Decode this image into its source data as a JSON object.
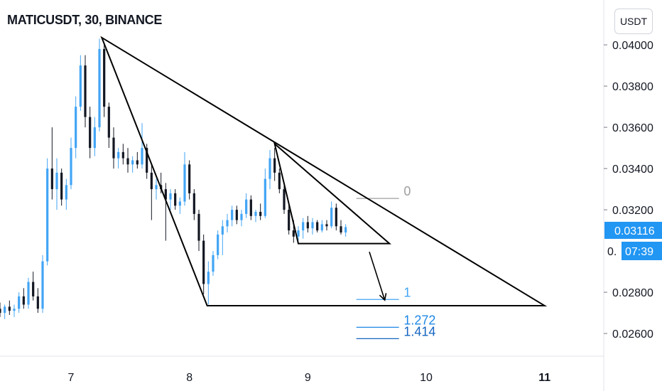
{
  "header": {
    "title": "MATICUSDT, 30, BINANCE",
    "unit": "USDT"
  },
  "chart_data": {
    "type": "candlestick",
    "symbol": "MATICUSDT",
    "interval": "30",
    "exchange": "BINANCE",
    "y_ticks": [
      "0.04000",
      "0.03800",
      "0.03600",
      "0.03400",
      "0.03200",
      "0.02800",
      "0.02600"
    ],
    "y_tick_values": [
      0.04,
      0.038,
      0.036,
      0.034,
      0.032,
      0.028,
      0.026
    ],
    "x_ticks": [
      "7",
      "8",
      "9",
      "10",
      "11"
    ],
    "x_tick_values": [
      7,
      8,
      9,
      10,
      11
    ],
    "ylim": [
      0.0249,
      0.0419
    ],
    "xlim": [
      6.4,
      11.5
    ],
    "last_price": "0.03116",
    "last_price_value": 0.03116,
    "countdown": "07:39",
    "price_label_partial": "0.",
    "colors": {
      "up": "#26a69a",
      "up_fill": "#42a5f5",
      "down": "#131722",
      "drawing": "#000000",
      "fib_0": "#9e9e9e",
      "fib_1": "#42a5f5",
      "fib_1272": "#1e88e5",
      "fib_1414": "#1565c0",
      "price_tag": "#2196f3"
    },
    "fib_levels": [
      {
        "label": "0",
        "price": 0.03255
      },
      {
        "label": "1",
        "price": 0.02765
      },
      {
        "label": "1.272",
        "price": 0.0263
      },
      {
        "label": "1.414",
        "price": 0.02575
      }
    ],
    "drawings": {
      "large_triangle": [
        [
          7.26,
          0.04035
        ],
        [
          11.0,
          0.02735
        ],
        [
          8.15,
          0.02735
        ]
      ],
      "small_triangle": [
        [
          8.72,
          0.0352
        ],
        [
          9.69,
          0.03036
        ],
        [
          8.92,
          0.03036
        ]
      ],
      "arrow": [
        [
          9.52,
          0.02996
        ],
        [
          9.65,
          0.02762
        ]
      ]
    },
    "candles": [
      [
        6.4,
        0.0272,
        0.0275,
        0.0268,
        0.027
      ],
      [
        6.44,
        0.027,
        0.0274,
        0.0267,
        0.0273
      ],
      [
        6.48,
        0.0273,
        0.0276,
        0.0269,
        0.0271
      ],
      [
        6.52,
        0.0271,
        0.0274,
        0.0268,
        0.0272
      ],
      [
        6.56,
        0.0272,
        0.028,
        0.027,
        0.0278
      ],
      [
        6.6,
        0.0278,
        0.0282,
        0.0272,
        0.0274
      ],
      [
        6.64,
        0.0274,
        0.0287,
        0.0272,
        0.0285
      ],
      [
        6.68,
        0.0285,
        0.029,
        0.0276,
        0.0278
      ],
      [
        6.72,
        0.0278,
        0.0282,
        0.027,
        0.0272
      ],
      [
        6.76,
        0.0272,
        0.0298,
        0.027,
        0.0295
      ],
      [
        6.8,
        0.0295,
        0.0345,
        0.0293,
        0.034
      ],
      [
        6.84,
        0.034,
        0.036,
        0.0325,
        0.033
      ],
      [
        6.88,
        0.033,
        0.0345,
        0.032,
        0.0338
      ],
      [
        6.92,
        0.0338,
        0.034,
        0.0322,
        0.0325
      ],
      [
        6.96,
        0.0325,
        0.0335,
        0.032,
        0.0332
      ],
      [
        7.0,
        0.0332,
        0.0355,
        0.033,
        0.035
      ],
      [
        7.04,
        0.035,
        0.0375,
        0.0345,
        0.037
      ],
      [
        7.08,
        0.037,
        0.0395,
        0.0368,
        0.039
      ],
      [
        7.12,
        0.039,
        0.0395,
        0.036,
        0.0365
      ],
      [
        7.16,
        0.0365,
        0.037,
        0.0345,
        0.035
      ],
      [
        7.2,
        0.035,
        0.0365,
        0.0346,
        0.036
      ],
      [
        7.24,
        0.036,
        0.0403,
        0.0358,
        0.0398
      ],
      [
        7.28,
        0.0398,
        0.04,
        0.0365,
        0.037
      ],
      [
        7.32,
        0.037,
        0.0372,
        0.035,
        0.0355
      ],
      [
        7.36,
        0.0355,
        0.036,
        0.034,
        0.0345
      ],
      [
        7.4,
        0.0345,
        0.035,
        0.034,
        0.0348
      ],
      [
        7.44,
        0.0348,
        0.0352,
        0.0342,
        0.0345
      ],
      [
        7.48,
        0.0345,
        0.035,
        0.0338,
        0.0342
      ],
      [
        7.52,
        0.0342,
        0.0346,
        0.0338,
        0.0344
      ],
      [
        7.56,
        0.0344,
        0.0348,
        0.034,
        0.0342
      ],
      [
        7.6,
        0.0342,
        0.0362,
        0.034,
        0.035
      ],
      [
        7.64,
        0.035,
        0.0352,
        0.0335,
        0.0338
      ],
      [
        7.68,
        0.0338,
        0.0342,
        0.0315,
        0.033
      ],
      [
        7.72,
        0.033,
        0.0335,
        0.0325,
        0.0332
      ],
      [
        7.76,
        0.0332,
        0.0338,
        0.0328,
        0.033
      ],
      [
        7.8,
        0.033,
        0.0333,
        0.0305,
        0.0325
      ],
      [
        7.84,
        0.0325,
        0.033,
        0.032,
        0.0328
      ],
      [
        7.88,
        0.0328,
        0.033,
        0.032,
        0.0322
      ],
      [
        7.92,
        0.0322,
        0.0326,
        0.0318,
        0.0324
      ],
      [
        7.96,
        0.0324,
        0.0348,
        0.0322,
        0.0342
      ],
      [
        8.0,
        0.0342,
        0.0344,
        0.0325,
        0.0328
      ],
      [
        8.04,
        0.0328,
        0.033,
        0.0315,
        0.0318
      ],
      [
        8.08,
        0.0318,
        0.032,
        0.03,
        0.0305
      ],
      [
        8.12,
        0.0305,
        0.0308,
        0.0279,
        0.0284
      ],
      [
        8.16,
        0.0284,
        0.0295,
        0.0274,
        0.029
      ],
      [
        8.2,
        0.029,
        0.03,
        0.0288,
        0.0298
      ],
      [
        8.24,
        0.0298,
        0.031,
        0.0296,
        0.0308
      ],
      [
        8.28,
        0.0308,
        0.0315,
        0.0298,
        0.0312
      ],
      [
        8.32,
        0.0312,
        0.0318,
        0.0309,
        0.0315
      ],
      [
        8.36,
        0.0315,
        0.0322,
        0.0312,
        0.032
      ],
      [
        8.4,
        0.032,
        0.0322,
        0.0313,
        0.0315
      ],
      [
        8.44,
        0.0315,
        0.032,
        0.0312,
        0.0318
      ],
      [
        8.48,
        0.0318,
        0.0328,
        0.0316,
        0.0325
      ],
      [
        8.52,
        0.0325,
        0.0327,
        0.0315,
        0.0317
      ],
      [
        8.56,
        0.0317,
        0.032,
        0.0314,
        0.0319
      ],
      [
        8.6,
        0.0319,
        0.0323,
        0.0315,
        0.0317
      ],
      [
        8.64,
        0.0317,
        0.034,
        0.0316,
        0.0335
      ],
      [
        8.68,
        0.0335,
        0.0349,
        0.033,
        0.0345
      ],
      [
        8.72,
        0.0345,
        0.035,
        0.0334,
        0.0338
      ],
      [
        8.76,
        0.0338,
        0.034,
        0.0328,
        0.033
      ],
      [
        8.8,
        0.033,
        0.0332,
        0.0318,
        0.032
      ],
      [
        8.84,
        0.032,
        0.0323,
        0.0308,
        0.031
      ],
      [
        8.88,
        0.031,
        0.0315,
        0.0304,
        0.0307
      ],
      [
        8.92,
        0.0307,
        0.0312,
        0.0305,
        0.031
      ],
      [
        8.96,
        0.031,
        0.0316,
        0.0306,
        0.0314
      ],
      [
        9.0,
        0.0314,
        0.0317,
        0.0309,
        0.0311
      ],
      [
        9.04,
        0.0311,
        0.0316,
        0.0308,
        0.0314
      ],
      [
        9.08,
        0.0314,
        0.0315,
        0.0309,
        0.031
      ],
      [
        9.12,
        0.031,
        0.0315,
        0.0309,
        0.0313
      ],
      [
        9.16,
        0.0313,
        0.0315,
        0.031,
        0.0312
      ],
      [
        9.2,
        0.0312,
        0.0324,
        0.0311,
        0.0321
      ],
      [
        9.24,
        0.0321,
        0.0323,
        0.031,
        0.0312
      ],
      [
        9.28,
        0.0312,
        0.0315,
        0.0308,
        0.0309
      ],
      [
        9.32,
        0.0309,
        0.0313,
        0.0307,
        0.03116
      ]
    ]
  }
}
